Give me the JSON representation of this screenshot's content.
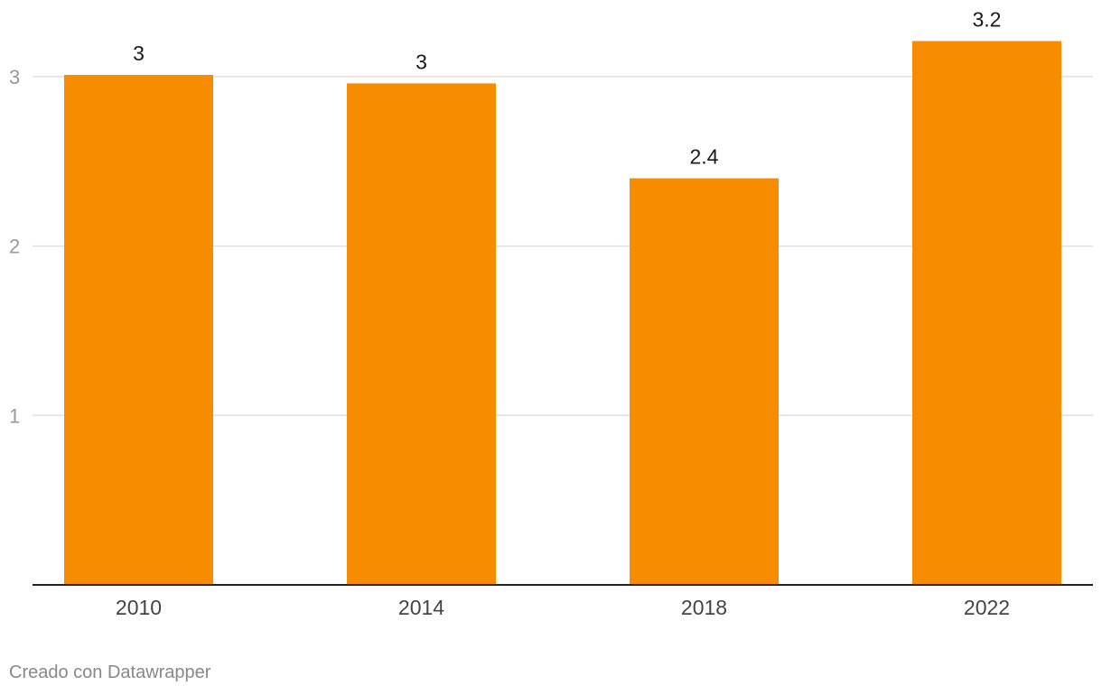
{
  "chart_data": {
    "type": "bar",
    "categories": [
      "2010",
      "2014",
      "2018",
      "2022"
    ],
    "values": [
      3.01,
      2.96,
      2.4,
      3.21
    ],
    "data_labels": [
      "3",
      "3",
      "2.4",
      "3.2"
    ],
    "yticks": [
      1,
      2,
      3
    ],
    "ylim": [
      0,
      3.3
    ],
    "grid": true,
    "bar_color": "#f78c00"
  },
  "footer": {
    "credit": "Creado con Datawrapper"
  }
}
